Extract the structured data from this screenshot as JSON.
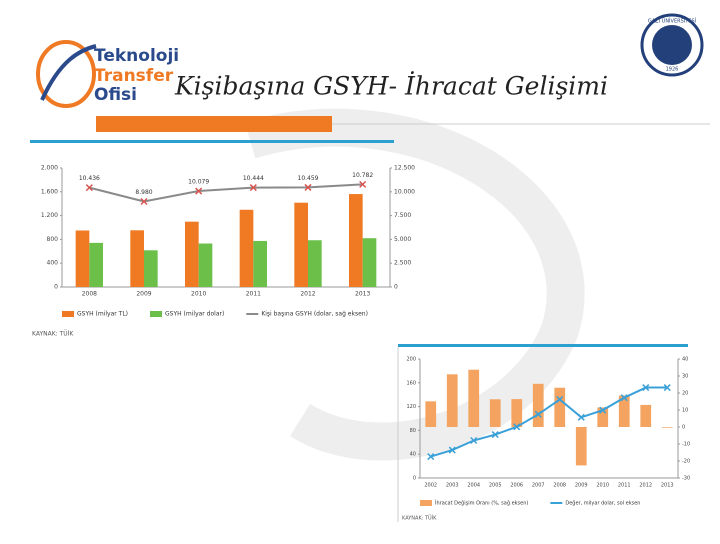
{
  "header": {
    "logo": [
      "Teknoloji",
      "Transfer",
      "Ofisi"
    ],
    "title": "Kişibaşına GSYH- İhracat Gelişimi",
    "seal": "GAZİ ÜNİVERSİTESİ",
    "seal_year": "1926"
  },
  "chart_data": [
    {
      "type": "bar-line",
      "categories": [
        "2008",
        "2009",
        "2010",
        "2011",
        "2012",
        "2013"
      ],
      "ylim": [
        0,
        2000
      ],
      "yticks": [
        0,
        400,
        800,
        {
          "value": 1200,
          "label": "1.200"
        },
        {
          "value": 1600,
          "label": "1.600"
        },
        {
          "value": 2000,
          "label": "2.000"
        }
      ],
      "y2lim": [
        0,
        12500
      ],
      "y2ticks": [
        0,
        {
          "value": 2500,
          "label": "2.500"
        },
        {
          "value": 5000,
          "label": "5.000"
        },
        {
          "value": 7500,
          "label": "7.500"
        },
        {
          "value": 10000,
          "label": "10.000"
        },
        {
          "value": 12500,
          "label": "12.500"
        }
      ],
      "series": [
        {
          "name": "GSYH (milyar TL)",
          "type": "bar",
          "color": "#f07a24",
          "values": [
            950,
            953,
            1098,
            1298,
            1417,
            1562
          ]
        },
        {
          "name": "GSYH (milyar dolar)",
          "type": "bar",
          "color": "#6cc04a",
          "values": [
            742,
            617,
            731,
            774,
            786,
            820
          ]
        },
        {
          "name": "Kişi başına GSYH (dolar, sağ eksen)",
          "type": "line",
          "axis": "y2",
          "color": "#8a8a8a",
          "values": [
            10436,
            8980,
            10079,
            10444,
            10459,
            10782
          ],
          "value_labels": [
            "10.436",
            "8.980",
            "10.079",
            "10.444",
            "10.459",
            "10.782"
          ]
        }
      ],
      "source": "KAYNAK: TÜİK"
    },
    {
      "type": "bar-line",
      "categories": [
        "2002",
        "2003",
        "2004",
        "2005",
        "2006",
        "2007",
        "2008",
        "2009",
        "2010",
        "2011",
        "2012",
        "2013"
      ],
      "ylim": [
        0,
        200
      ],
      "yticks": [
        0,
        40,
        80,
        120,
        160,
        200
      ],
      "y2lim": [
        -30,
        40
      ],
      "y2ticks": [
        -30,
        -20,
        -10,
        0,
        10,
        20,
        30,
        40
      ],
      "series": [
        {
          "name": "İhracat Değişim Oranı (%, sağ eksen)",
          "type": "bar",
          "axis": "y2",
          "color": "#f4a460",
          "values": [
            15.1,
            31.0,
            33.7,
            16.3,
            16.4,
            25.4,
            23.1,
            -22.6,
            11.5,
            18.5,
            13.0,
            -0.4
          ]
        },
        {
          "name": "Değer, milyar dolar, sol eksen",
          "type": "line",
          "color": "#3aa0d8",
          "values": [
            36,
            47,
            63,
            73,
            86,
            107,
            132,
            102,
            114,
            135,
            152,
            152
          ]
        }
      ],
      "source": "KAYNAK: TÜİK"
    }
  ]
}
